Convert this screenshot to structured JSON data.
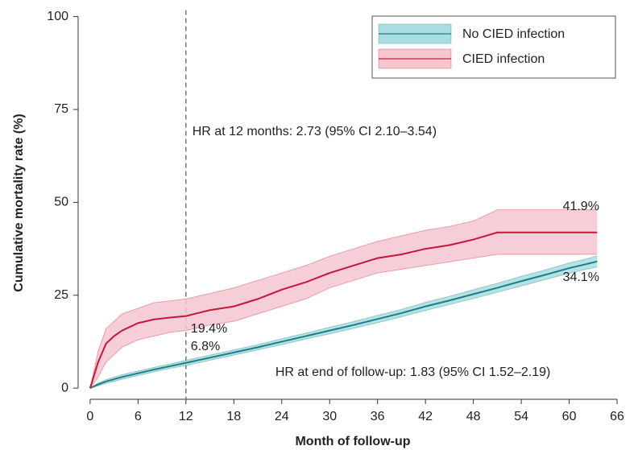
{
  "chart_data": {
    "type": "line",
    "x_label": "Month of follow-up",
    "y_label": "Cumulative mortality rate (%)",
    "xlim": [
      -1.5,
      66.5
    ],
    "ylim": [
      -3,
      101
    ],
    "xticks": [
      0,
      6,
      12,
      18,
      24,
      30,
      36,
      42,
      48,
      54,
      60,
      66
    ],
    "yticks": [
      0,
      25,
      50,
      75,
      100
    ],
    "vline": 12,
    "legend": "top-right",
    "annotations": [
      {
        "text": "HR at 12 months: 2.73 (95% CI 2.10–3.54)",
        "x": 12.8,
        "y": 69
      },
      {
        "text": "HR at end of follow-up: 1.83 (95% CI 1.52–2.19)",
        "x": 23.2,
        "y": 4.2
      }
    ],
    "x": [
      0,
      1,
      2,
      3,
      4,
      6,
      8,
      10,
      12,
      15,
      18,
      21,
      24,
      27,
      30,
      33,
      36,
      39,
      42,
      45,
      48,
      51,
      54,
      57,
      60,
      62,
      63.5
    ],
    "series": [
      {
        "name": "No CIED infection",
        "color": "#1b7f86",
        "band_color": "#a9dde1",
        "values": [
          0,
          1,
          1.8,
          2.4,
          3,
          4,
          5,
          5.9,
          6.8,
          8.2,
          9.6,
          11,
          12.5,
          14,
          15.5,
          17,
          18.6,
          20.2,
          22,
          23.6,
          25.3,
          27,
          28.8,
          30.5,
          32.3,
          33.3,
          34.1
        ],
        "lower": [
          0,
          0.6,
          1.3,
          1.8,
          2.4,
          3.4,
          4.4,
          5.3,
          6.1,
          7.5,
          8.9,
          10.3,
          11.7,
          13.2,
          14.6,
          16.1,
          17.6,
          19.2,
          20.9,
          22.5,
          24.1,
          25.8,
          27.5,
          29.2,
          30.9,
          31.9,
          32.6
        ],
        "upper": [
          0,
          1.4,
          2.3,
          3,
          3.6,
          4.6,
          5.6,
          6.5,
          7.5,
          8.9,
          10.3,
          11.7,
          13.3,
          14.8,
          16.4,
          17.9,
          19.6,
          21.2,
          23.1,
          24.7,
          26.5,
          28.2,
          30.1,
          31.8,
          33.7,
          34.7,
          35.6
        ],
        "point_labels": [
          {
            "x": 12,
            "value": 6.8,
            "label": "6.8%"
          },
          {
            "x": 63.5,
            "value": 34.1,
            "label": "34.1%"
          }
        ]
      },
      {
        "name": "CIED infection",
        "color": "#c8163a",
        "band_color": "#f5c6d0",
        "values": [
          0,
          7,
          12,
          14,
          15.5,
          17.5,
          18.5,
          19,
          19.4,
          21,
          22,
          24,
          26.5,
          28.5,
          31,
          33,
          35,
          36,
          37.5,
          38.5,
          40,
          41.9,
          41.9,
          41.9,
          41.9,
          41.9,
          41.9
        ],
        "lower": [
          0,
          3,
          7,
          9,
          11,
          13,
          14,
          15,
          15.5,
          17,
          18,
          20,
          22,
          24,
          27,
          29,
          31,
          32,
          33,
          34,
          35,
          36,
          36,
          36,
          36,
          36,
          36
        ],
        "upper": [
          0,
          10,
          16,
          18,
          20,
          21.5,
          23,
          23.5,
          24,
          25.5,
          27,
          29,
          31,
          33,
          35.5,
          37.5,
          39.5,
          41,
          42.5,
          43.5,
          45,
          48,
          48,
          48,
          48,
          48,
          48
        ],
        "point_labels": [
          {
            "x": 12,
            "value": 19.4,
            "label": "19.4%"
          },
          {
            "x": 63.5,
            "value": 41.9,
            "label": "41.9%"
          }
        ]
      }
    ]
  }
}
